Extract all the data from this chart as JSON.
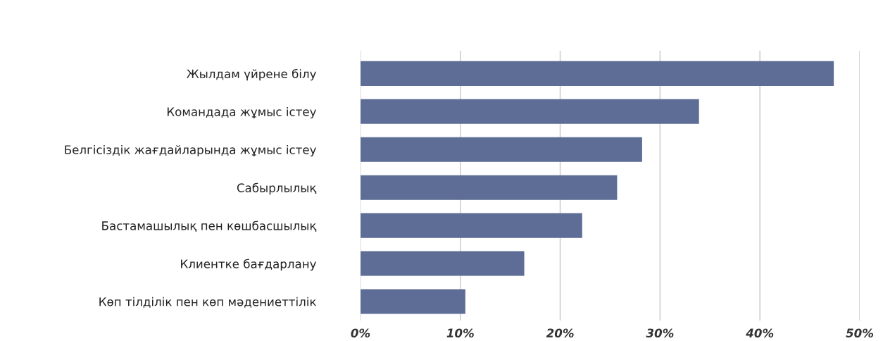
{
  "chart_data": {
    "type": "bar",
    "orientation": "horizontal",
    "categories": [
      "Жылдам үйрене білу",
      "Командада жұмыс істеу",
      "Белгісіздік жағдайларында жұмыс істеу",
      "Сабырлылық",
      "Бастамашылық пен көшбасшылық",
      "Клиентке бағдарлану",
      "Көп тілділік пен көп мәдениеттілік"
    ],
    "values": [
      47.4,
      33.9,
      28.2,
      25.7,
      22.2,
      16.4,
      10.5
    ],
    "color": "#5d6d96",
    "xlim": [
      0,
      50
    ],
    "xticks": [
      {
        "value": 0,
        "label": "0%"
      },
      {
        "value": 10,
        "label": "10%"
      },
      {
        "value": 20,
        "label": "20%"
      },
      {
        "value": 30,
        "label": "30%"
      },
      {
        "value": 40,
        "label": "40%"
      },
      {
        "value": 50,
        "label": "50%"
      }
    ],
    "grid": "x"
  }
}
